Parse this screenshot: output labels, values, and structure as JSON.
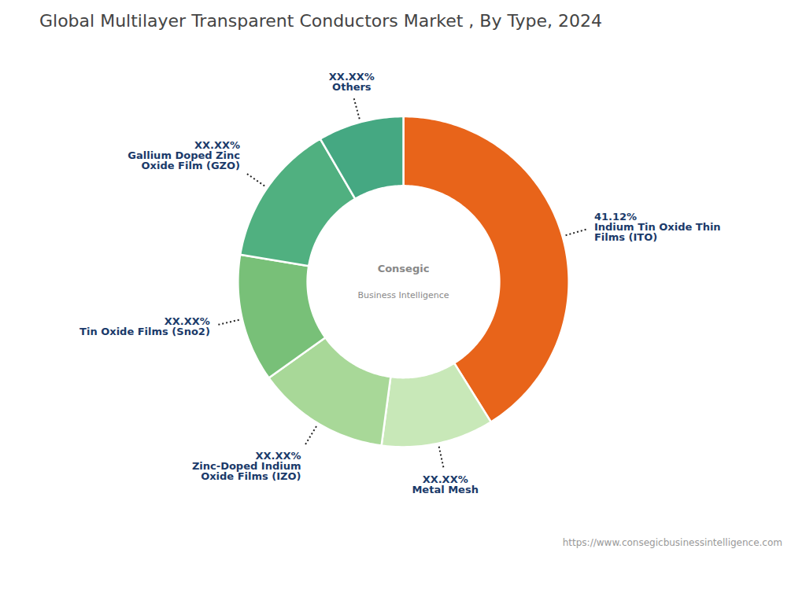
{
  "chart_data": {
    "type": "donut",
    "title": "Global Multilayer Transparent Conductors Market , By Type, 2024",
    "categories": [
      "Indium Tin Oxide Thin\nFilms (ITO)",
      "Metal Mesh",
      "Zinc-Doped Indium\nOxide Films (IZO)",
      "Tin Oxide Films (Sno2)",
      "Gallium Doped Zinc\nOxide Film (GZO)",
      "Others"
    ],
    "values": [
      41.12,
      11.0,
      13.0,
      12.5,
      14.0,
      8.38
    ],
    "value_labels": [
      "41.12%",
      "XX.XX%",
      "XX.XX%",
      "XX.XX%",
      "XX.XX%",
      "XX.XX%"
    ],
    "colors": [
      "#E8641A",
      "#C8E8B8",
      "#A8D898",
      "#78C078",
      "#50B080",
      "#45A882"
    ],
    "data_labels": true,
    "tick_labels": false,
    "annotations": [
      "Consegic",
      "Business Intelligence",
      "https://www.consegicbusinessintelligence.com"
    ]
  }
}
